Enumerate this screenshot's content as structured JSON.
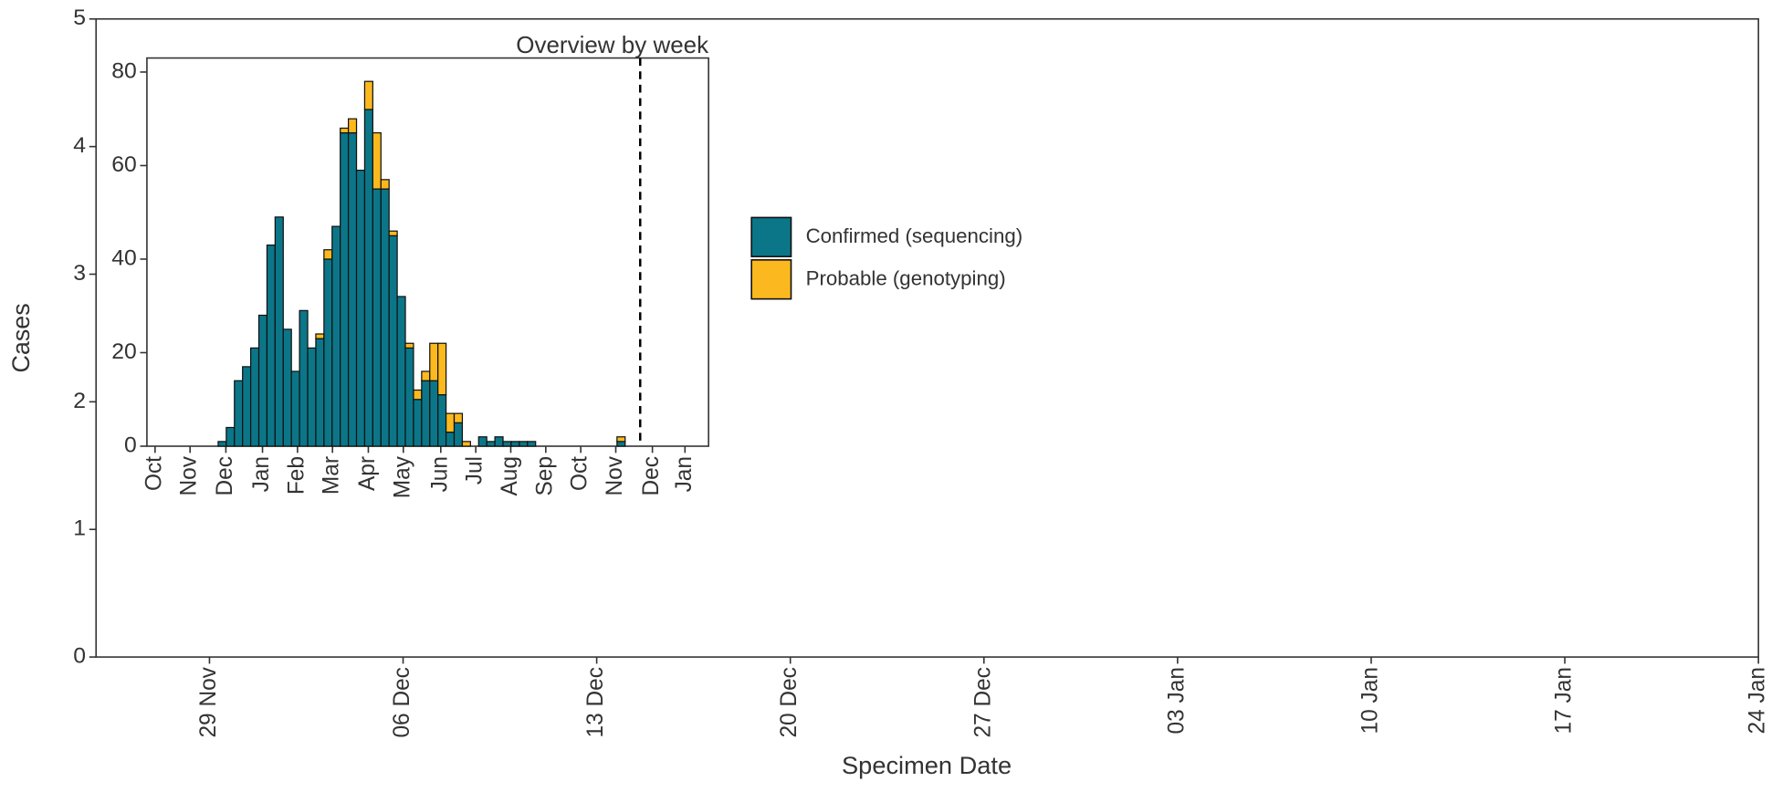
{
  "chart_data": [
    {
      "type": "bar",
      "xlabel": "Specimen Date",
      "ylabel": "Cases",
      "xlim": [
        -4.1,
        56
      ],
      "xticks": [
        {
          "value": 0,
          "label": "29 Nov"
        },
        {
          "value": 7,
          "label": "06 Dec"
        },
        {
          "value": 14,
          "label": "13 Dec"
        },
        {
          "value": 21,
          "label": "20 Dec"
        },
        {
          "value": 28,
          "label": "27 Dec"
        },
        {
          "value": 35,
          "label": "03 Jan"
        },
        {
          "value": 42,
          "label": "10 Jan"
        },
        {
          "value": 49,
          "label": "17 Jan"
        },
        {
          "value": 56,
          "label": "24 Jan"
        }
      ],
      "ylim": [
        0,
        5
      ],
      "yticks": [
        0,
        1,
        2,
        3,
        4,
        5
      ],
      "x": [],
      "series": [
        {
          "name": "Confirmed (sequencing)",
          "color": "#0b7688",
          "values": []
        },
        {
          "name": "Probable (genotyping)",
          "color": "#fbb91f",
          "values": []
        }
      ]
    },
    {
      "type": "bar",
      "title": "Overview by week",
      "stacked": true,
      "xlim": [
        0,
        69
      ],
      "xticks": [
        {
          "value": 1.0,
          "label": "Oct"
        },
        {
          "value": 5.3,
          "label": "Nov"
        },
        {
          "value": 9.7,
          "label": "Dec"
        },
        {
          "value": 14.2,
          "label": "Jan"
        },
        {
          "value": 18.5,
          "label": "Feb"
        },
        {
          "value": 22.8,
          "label": "Mar"
        },
        {
          "value": 27.2,
          "label": "Apr"
        },
        {
          "value": 31.5,
          "label": "May"
        },
        {
          "value": 36.1,
          "label": "Jun"
        },
        {
          "value": 40.4,
          "label": "Jul"
        },
        {
          "value": 44.7,
          "label": "Aug"
        },
        {
          "value": 49.0,
          "label": "Sep"
        },
        {
          "value": 53.3,
          "label": "Oct"
        },
        {
          "value": 57.6,
          "label": "Nov"
        },
        {
          "value": 62.1,
          "label": "Dec"
        },
        {
          "value": 66.1,
          "label": "Jan"
        }
      ],
      "ylim": [
        0,
        83
      ],
      "yticks": [
        0,
        20,
        40,
        60,
        80
      ],
      "vline": 60.6,
      "x": [
        8.75,
        9.75,
        10.75,
        11.75,
        12.75,
        13.75,
        14.75,
        15.75,
        16.75,
        17.75,
        18.75,
        19.75,
        20.75,
        21.75,
        22.75,
        23.75,
        24.75,
        25.75,
        26.75,
        27.75,
        28.75,
        29.75,
        30.75,
        31.75,
        32.75,
        33.75,
        34.75,
        35.75,
        36.75,
        37.75,
        38.75,
        39.75,
        40.75,
        41.75,
        42.75,
        43.75,
        44.75,
        45.75,
        46.75,
        47.75,
        48.75,
        49.75,
        50.75,
        51.75,
        52.75,
        53.75,
        54.75,
        55.75,
        56.75,
        57.75
      ],
      "series": [
        {
          "color": "#0b7688",
          "values": [
            1,
            4,
            14,
            17,
            21,
            28,
            43,
            49,
            25,
            16,
            29,
            21,
            23,
            40,
            47,
            67,
            67,
            59,
            72,
            55,
            55,
            45,
            32,
            21,
            10,
            14,
            14,
            11,
            3,
            5,
            0,
            0,
            2,
            1,
            2,
            1,
            1,
            1,
            1,
            0,
            0,
            0,
            0,
            0,
            0,
            0,
            0,
            0,
            0,
            1
          ]
        },
        {
          "color": "#fbb91f",
          "values": [
            0,
            0,
            0,
            0,
            0,
            0,
            0,
            0,
            0,
            0,
            0,
            0,
            1,
            2,
            0,
            1,
            3,
            0,
            6,
            12,
            2,
            1,
            0,
            1,
            2,
            2,
            8,
            11,
            4,
            2,
            1,
            0,
            0,
            0,
            0,
            0,
            0,
            0,
            0,
            0,
            0,
            0,
            0,
            0,
            0,
            0,
            0,
            0,
            0,
            1
          ]
        }
      ]
    }
  ]
}
